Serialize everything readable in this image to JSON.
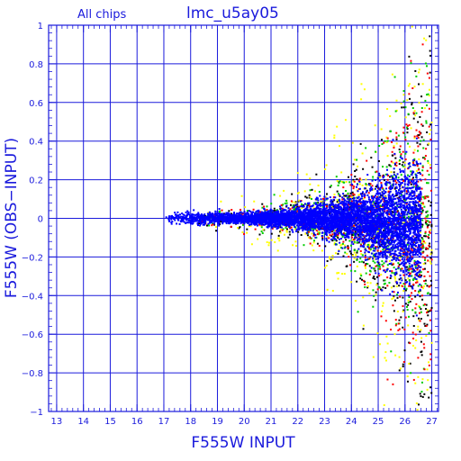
{
  "header": {
    "chip_label": "All chips",
    "title": "lmc_u5ay05"
  },
  "chart_data": {
    "type": "scatter",
    "title": "lmc_u5ay05",
    "subtitle": "All chips",
    "xlabel": "F555W INPUT",
    "ylabel": "F555W (OBS−INPUT)",
    "xlim": [
      12.7,
      27.25
    ],
    "ylim": [
      -1,
      1
    ],
    "x_ticks": [
      13,
      14,
      15,
      16,
      17,
      18,
      19,
      20,
      21,
      22,
      23,
      24,
      25,
      26,
      27
    ],
    "x_tick_labels": [
      "13",
      "14",
      "15",
      "16",
      "17",
      "18",
      "19",
      "20",
      "21",
      "22",
      "23",
      "24",
      "25",
      "26",
      "27"
    ],
    "y_ticks": [
      -1,
      -0.8,
      -0.6,
      -0.4,
      -0.2,
      0,
      0.2,
      0.4,
      0.6,
      0.8,
      1
    ],
    "y_tick_labels": [
      "−1",
      "−0.8",
      "−0.6",
      "−0.4",
      "−0.2",
      "0",
      "0.2",
      "0.4",
      "0.6",
      "0.8",
      "1"
    ],
    "grid": true,
    "colors": {
      "axis": "#1a1adc",
      "grid": "#1a1adc",
      "text": "#1a1adc"
    },
    "series": [
      {
        "color": "#0000ff",
        "x_range": [
          16.9,
          26.6
        ],
        "spread": [
          [
            17,
            0.03
          ],
          [
            20,
            0.03
          ],
          [
            22,
            0.06
          ],
          [
            24,
            0.12
          ],
          [
            25,
            0.2
          ],
          [
            26,
            0.3
          ]
        ]
      },
      {
        "color": "#000000",
        "x_range": [
          17.5,
          27.0
        ],
        "spread": [
          [
            17,
            0.04
          ],
          [
            20,
            0.06
          ],
          [
            22,
            0.1
          ],
          [
            24,
            0.22
          ],
          [
            25,
            0.35
          ],
          [
            26,
            0.6
          ],
          [
            27,
            0.9
          ]
        ]
      },
      {
        "color": "#00cc00",
        "x_range": [
          17.5,
          26.9
        ],
        "spread": [
          [
            17,
            0.04
          ],
          [
            20,
            0.05
          ],
          [
            22,
            0.08
          ],
          [
            24,
            0.2
          ],
          [
            25,
            0.3
          ],
          [
            26,
            0.5
          ],
          [
            27,
            0.8
          ]
        ]
      },
      {
        "color": "#ff0000",
        "x_range": [
          17.5,
          27.0
        ],
        "spread": [
          [
            17,
            0.04
          ],
          [
            20,
            0.05
          ],
          [
            22,
            0.08
          ],
          [
            24,
            0.2
          ],
          [
            25,
            0.3
          ],
          [
            26,
            0.5
          ],
          [
            27,
            0.8
          ]
        ]
      },
      {
        "color": "#ffff00",
        "x_range": [
          18.0,
          27.0
        ],
        "spread": [
          [
            17,
            0.05
          ],
          [
            20,
            0.1
          ],
          [
            22,
            0.2
          ],
          [
            24,
            0.4
          ],
          [
            25,
            0.5
          ],
          [
            26,
            0.7
          ],
          [
            27,
            0.95
          ]
        ]
      }
    ]
  }
}
